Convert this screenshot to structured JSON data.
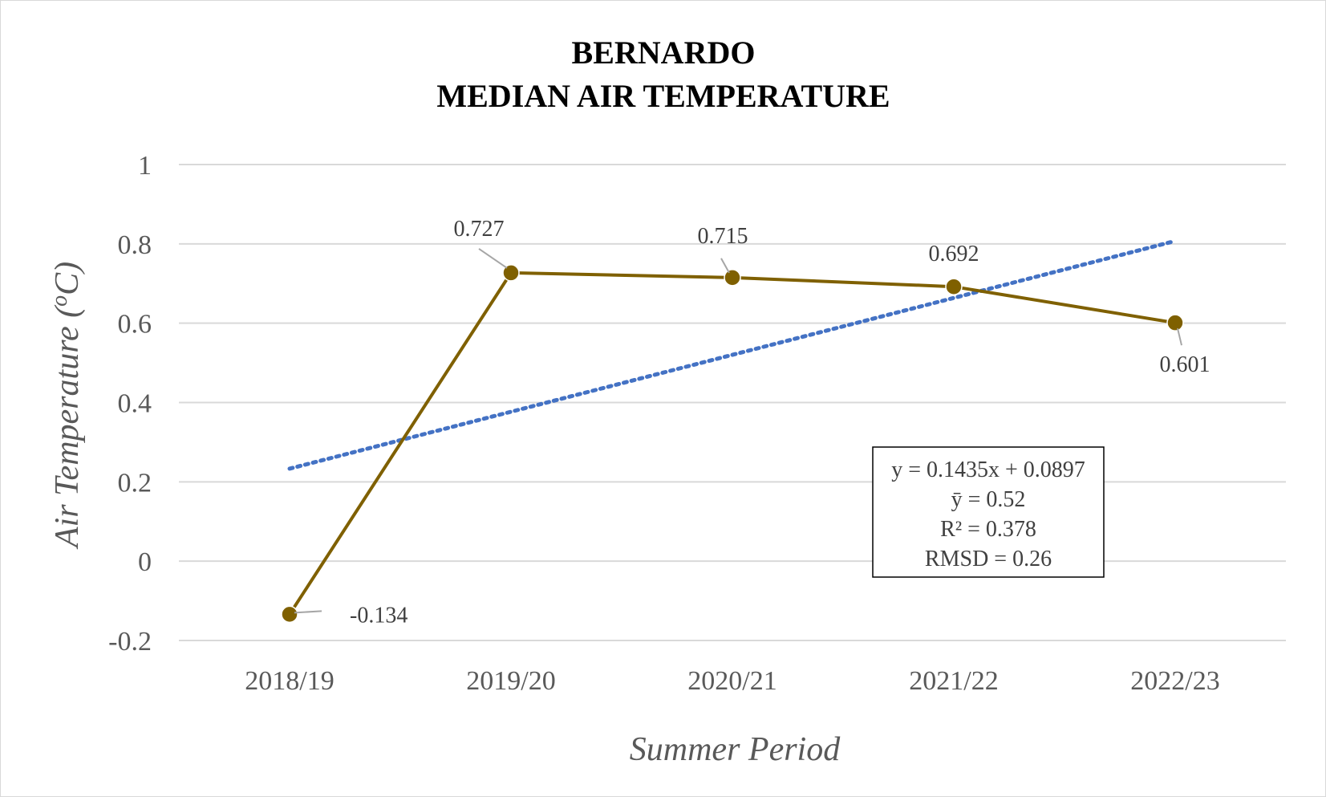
{
  "chart_data": {
    "type": "line",
    "title": [
      "BERNARDO",
      "MEDIAN AIR TEMPERATURE"
    ],
    "xlabel": "Summer Period",
    "ylabel": "Air Temperature (",
    "ylabel_sup": "o",
    "ylabel_unit": "C)",
    "categories": [
      "2018/19",
      "2019/20",
      "2020/21",
      "2021/22",
      "2022/23"
    ],
    "series": [
      {
        "values": [
          -0.134,
          0.727,
          0.715,
          0.692,
          0.601
        ],
        "data_labels": [
          "-0.134",
          "0.727",
          "0.715",
          "0.692",
          "0.601"
        ],
        "color": "#7f6000"
      }
    ],
    "trendline": {
      "type": "linear",
      "slope": 0.1435,
      "intercept": 0.0897,
      "color": "#4472c4",
      "style": "dotted"
    },
    "stats_box": [
      "y = 0.1435x + 0.0897",
      "ȳ = 0.52",
      "R² = 0.378",
      "RMSD = 0.26"
    ],
    "ylim": [
      -0.2,
      1
    ],
    "yticks": [
      -0.2,
      0,
      0.2,
      0.4,
      0.6,
      0.8,
      1
    ],
    "ytick_labels": [
      "-0.2",
      "0",
      "0.2",
      "0.4",
      "0.6",
      "0.8",
      "1"
    ],
    "grid": true,
    "legend": "none"
  }
}
